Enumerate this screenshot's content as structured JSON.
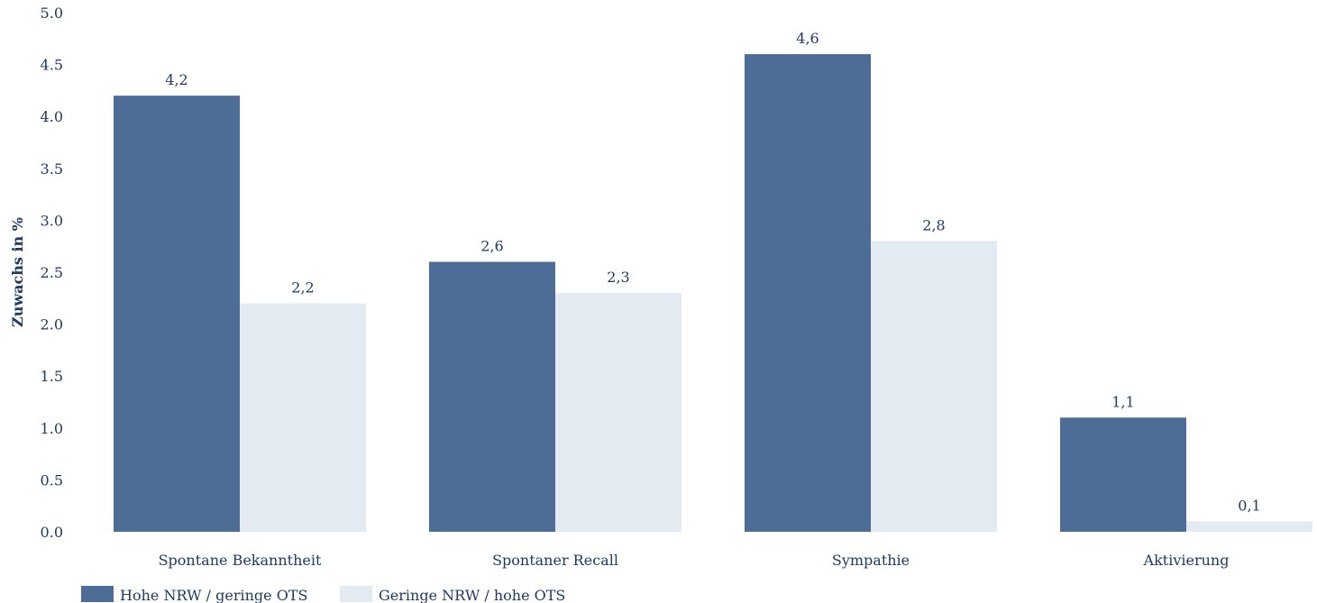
{
  "chart_data": {
    "type": "bar",
    "title": "",
    "xlabel": "",
    "ylabel": "Zuwachs in %",
    "ylim": [
      0,
      5
    ],
    "yticks": [
      "0.0",
      "0.5",
      "1.0",
      "1.5",
      "2.0",
      "2.5",
      "3.0",
      "3.5",
      "4.0",
      "4.5",
      "5.0"
    ],
    "grid": false,
    "legend_position": "bottom-left",
    "categories": [
      "Spontane Bekanntheit",
      "Spontaner Recall",
      "Sympathie",
      "Aktivierung"
    ],
    "series": [
      {
        "name": "Hohe NRW / geringe OTS",
        "color": "#4d6c96",
        "values": [
          4.2,
          2.6,
          4.6,
          1.1
        ],
        "labels": [
          "4,2",
          "2,6",
          "4,6",
          "1,1"
        ]
      },
      {
        "name": "Geringe NRW / hohe OTS",
        "color": "#e3eaf2",
        "values": [
          2.2,
          2.3,
          2.8,
          0.1
        ],
        "labels": [
          "2,2",
          "2,3",
          "2,8",
          "0,1"
        ]
      }
    ]
  }
}
